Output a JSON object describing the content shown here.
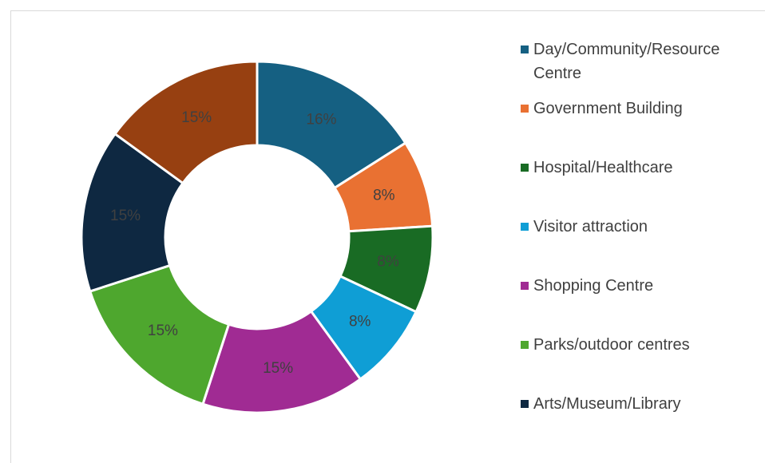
{
  "chart_data": {
    "type": "donut",
    "categories": [
      "Day/Community/Resource Centre",
      "Government Building",
      "Hospital/Healthcare",
      "Visitor attraction",
      "Shopping Centre",
      "Parks/outdoor centres",
      "Arts/Museum/Library",
      null
    ],
    "values": [
      16,
      8,
      8,
      8,
      15,
      15,
      15,
      15
    ],
    "value_labels": [
      "16%",
      "8%",
      "8%",
      "8%",
      "15%",
      "15%",
      "15%",
      "15%"
    ],
    "colors": [
      "#156082",
      "#e97132",
      "#196b24",
      "#0f9ed5",
      "#a02b93",
      "#4ea72e",
      "#0e2841",
      "#974011"
    ]
  }
}
